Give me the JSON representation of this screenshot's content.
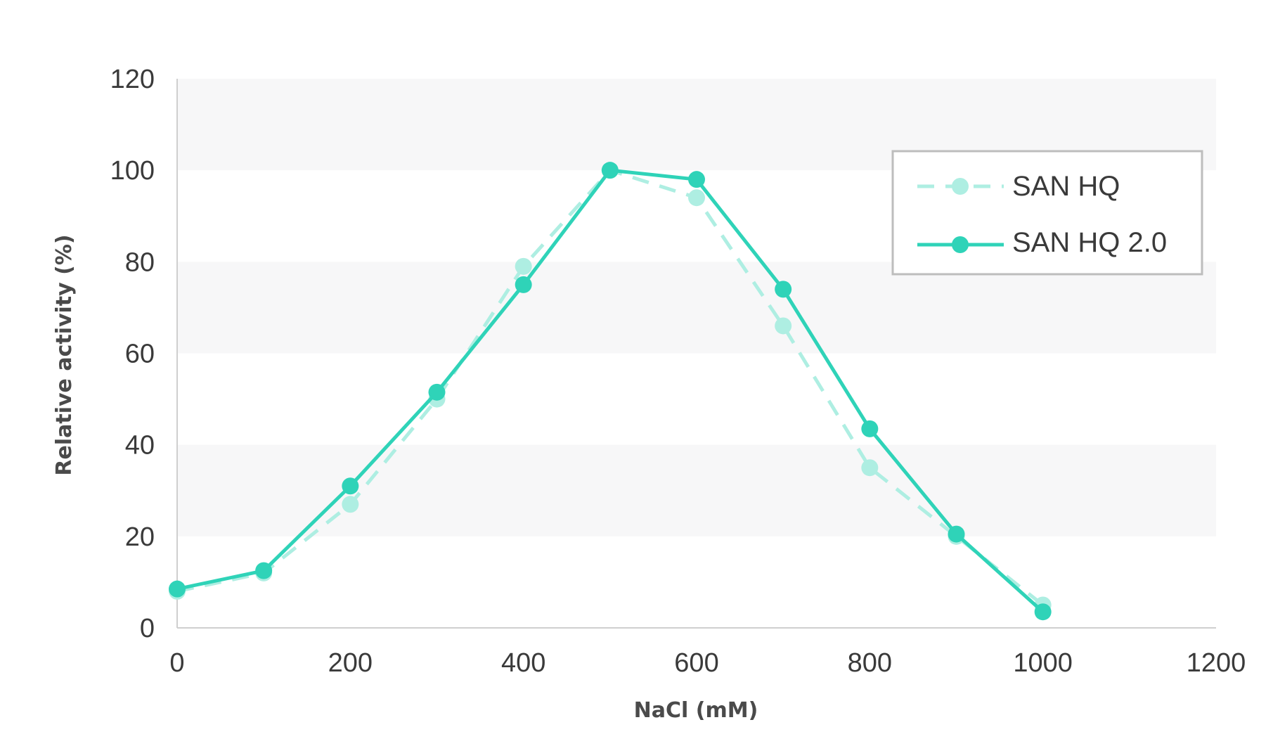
{
  "chart_data": {
    "type": "line",
    "xlabel": "NaCl (mM)",
    "ylabel": "Relative activity (%)",
    "xlim": [
      0,
      1200
    ],
    "ylim": [
      0,
      120
    ],
    "x_ticks": [
      0,
      200,
      400,
      600,
      800,
      1000,
      1200
    ],
    "y_ticks": [
      0,
      20,
      40,
      60,
      80,
      100,
      120
    ],
    "grid": "alternating horizontal bands",
    "legend_position": "top-right",
    "series": [
      {
        "name": "SAN HQ",
        "style": "dashed",
        "color": "#aeeee2",
        "x": [
          0,
          100,
          200,
          300,
          400,
          500,
          600,
          700,
          800,
          900,
          1000
        ],
        "values": [
          8,
          12,
          27,
          50,
          79,
          100,
          94,
          66,
          35,
          20,
          5
        ]
      },
      {
        "name": "SAN HQ 2.0",
        "style": "solid",
        "color": "#2fd3b8",
        "x": [
          0,
          100,
          200,
          300,
          400,
          500,
          600,
          700,
          800,
          900,
          1000
        ],
        "values": [
          8.5,
          12.5,
          31,
          51.5,
          75,
          100,
          98,
          74,
          43.5,
          20.5,
          3.5
        ]
      }
    ]
  }
}
